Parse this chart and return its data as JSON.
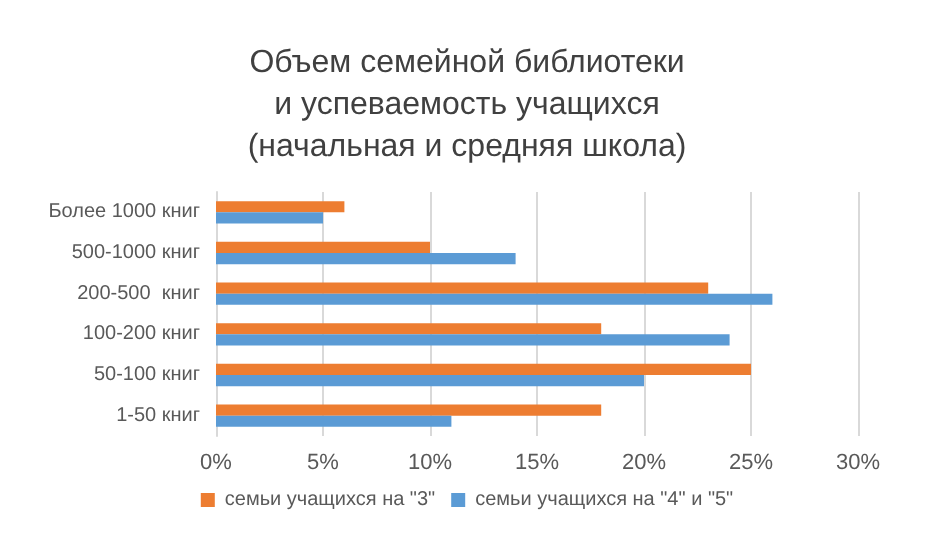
{
  "chart_data": {
    "type": "bar",
    "orientation": "horizontal",
    "title": "Объем семейной библиотеки\nи успеваемость учащихся\n(начальная и средняя школа)",
    "categories": [
      "Более 1000 книг",
      "500-1000 книг",
      "200-500  книг",
      "100-200 книг",
      "50-100 книг",
      "1-50 книг"
    ],
    "series": [
      {
        "name": "семьи учащихся на \"3\"",
        "color": "#ed7d31",
        "values": [
          6,
          10,
          23,
          18,
          25,
          18
        ]
      },
      {
        "name": "семьи учащихся на \"4\" и \"5\"",
        "color": "#5b9bd5",
        "values": [
          5,
          14,
          26,
          24,
          20,
          11
        ]
      }
    ],
    "xlim": [
      0,
      30
    ],
    "xticks": [
      {
        "value": 0,
        "label": "0%"
      },
      {
        "value": 5,
        "label": "5%"
      },
      {
        "value": 10,
        "label": "10%"
      },
      {
        "value": 15,
        "label": "15%"
      },
      {
        "value": 20,
        "label": "20%"
      },
      {
        "value": 25,
        "label": "25%"
      },
      {
        "value": 30,
        "label": "30%"
      }
    ],
    "grid": "x",
    "legend": "bottom"
  }
}
